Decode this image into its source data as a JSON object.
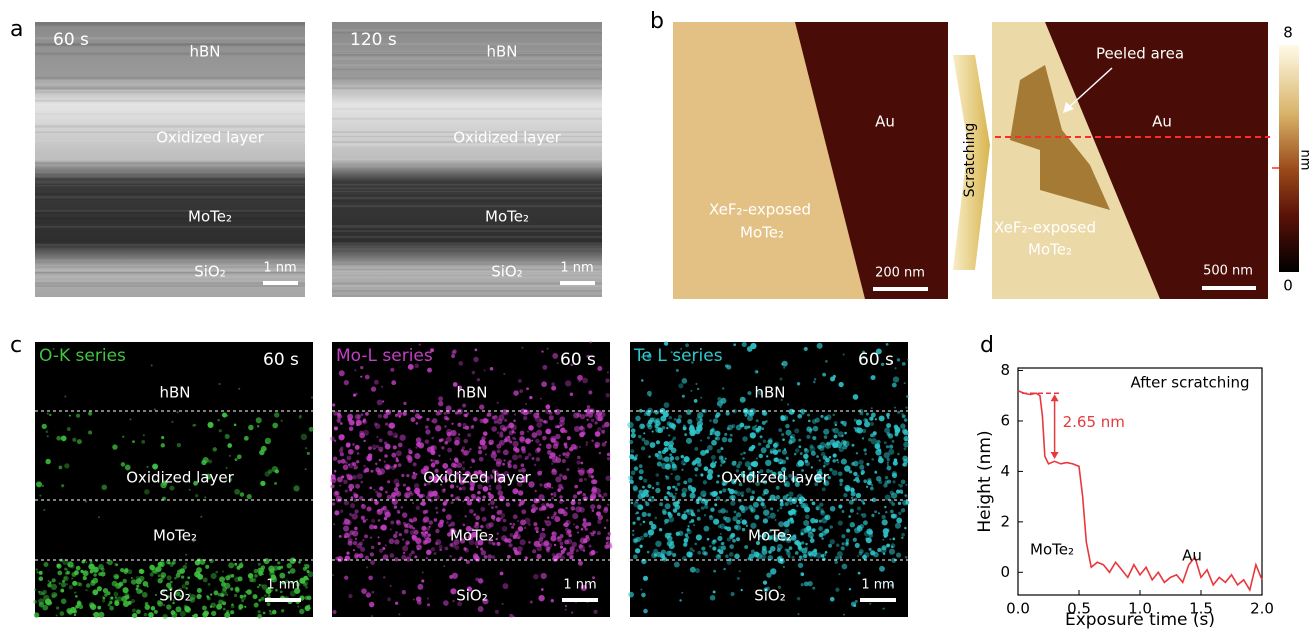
{
  "panels": {
    "a": {
      "label": "a",
      "images": [
        {
          "time": "60 s",
          "layers": [
            "hBN",
            "Oxidized layer",
            "MoTe₂",
            "SiO₂"
          ],
          "scale_bar": "1 nm"
        },
        {
          "time": "120 s",
          "layers": [
            "hBN",
            "Oxidized layer",
            "MoTe₂",
            "SiO₂"
          ],
          "scale_bar": "1 nm"
        }
      ]
    },
    "b": {
      "label": "b",
      "left": {
        "metal": "Au",
        "sample": [
          "XeF₂-exposed",
          "MoTe₂"
        ],
        "scale_bar": "200 nm"
      },
      "arrow": "Scratching",
      "right": {
        "annotation": "Peeled area",
        "metal": "Au",
        "sample": [
          "XeF₂-exposed",
          "MoTe₂"
        ],
        "scale_bar": "500 nm"
      },
      "colorbar": {
        "ticks": [
          0,
          8
        ],
        "unit": "nm"
      }
    },
    "c": {
      "label": "c",
      "maps": [
        {
          "series": "O-K series",
          "time": "60 s",
          "layers": [
            "hBN",
            "Oxidized layer",
            "MoTe₂",
            "SiO₂"
          ],
          "scale_bar": "1 nm"
        },
        {
          "series": "Mo-L series",
          "time": "60 s",
          "layers": [
            "hBN",
            "Oxidized layer",
            "MoTe₂",
            "SiO₂"
          ],
          "scale_bar": "1 nm"
        },
        {
          "series": "Te L series",
          "time": "60 s",
          "layers": [
            "hBN",
            "Oxidized layer",
            "MoTe₂",
            "SiO₂"
          ],
          "scale_bar": "1 nm"
        }
      ]
    },
    "d": {
      "label": "d"
    }
  },
  "chart_data": {
    "type": "line",
    "xlabel": "Exposure time (s)",
    "ylabel": "Height (nm)",
    "color": "#e8383d",
    "x": [
      0,
      0.05,
      0.1,
      0.15,
      0.18,
      0.2,
      0.22,
      0.25,
      0.3,
      0.35,
      0.4,
      0.45,
      0.5,
      0.53,
      0.56,
      0.6,
      0.65,
      0.7,
      0.75,
      0.8,
      0.85,
      0.9,
      0.95,
      1.0,
      1.05,
      1.1,
      1.15,
      1.2,
      1.25,
      1.3,
      1.35,
      1.4,
      1.45,
      1.5,
      1.55,
      1.6,
      1.65,
      1.7,
      1.75,
      1.8,
      1.85,
      1.9,
      1.95,
      2.0
    ],
    "values": [
      7.2,
      7.1,
      7.05,
      7.1,
      7.0,
      6.2,
      4.6,
      4.3,
      4.4,
      4.3,
      4.35,
      4.3,
      4.2,
      3.0,
      1.2,
      0.2,
      0.4,
      0.3,
      0.0,
      0.4,
      0.1,
      -0.2,
      0.3,
      -0.1,
      0.2,
      -0.3,
      0.0,
      -0.4,
      -0.2,
      -0.1,
      -0.4,
      0.3,
      0.6,
      -0.2,
      0.1,
      -0.5,
      -0.2,
      -0.4,
      -0.1,
      -0.5,
      -0.3,
      -0.7,
      0.3,
      -0.3
    ],
    "xlim": [
      0,
      2
    ],
    "ylim": [
      -0.9,
      8.1
    ],
    "xticks": [
      {
        "value": 0,
        "label": "0.0"
      },
      {
        "value": 0.5,
        "label": "0.5"
      },
      {
        "value": 1,
        "label": "1.0"
      },
      {
        "value": 1.5,
        "label": "1.5"
      },
      {
        "value": 2,
        "label": "2.0"
      }
    ],
    "yticks": [
      0,
      2,
      4,
      6,
      8
    ],
    "reference_y": 7.1,
    "step": {
      "value": 2.65,
      "label": "2.65 nm"
    },
    "texts": [
      "After scratching",
      "MoTe₂",
      "Au"
    ]
  }
}
